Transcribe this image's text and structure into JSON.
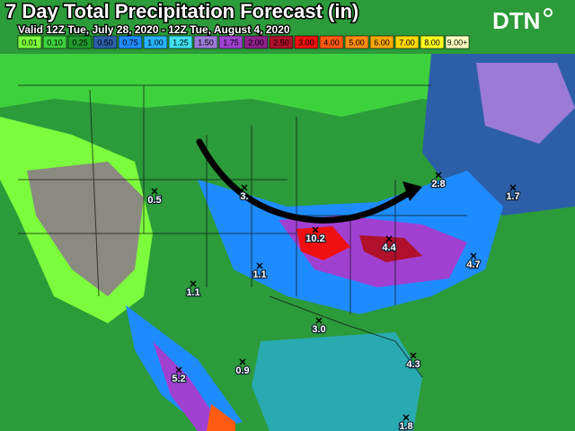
{
  "header": {
    "title": "7 Day Total Precipitation Forecast (in)",
    "subtitle": "Valid 12Z Tue, July 28, 2020 - 12Z Tue, August 4, 2020",
    "logo": "DTN"
  },
  "legend": [
    {
      "label": "0.01",
      "color": "#7cfc3c"
    },
    {
      "label": "0.10",
      "color": "#3ed13e"
    },
    {
      "label": "0.25",
      "color": "#1f9a2c"
    },
    {
      "label": "0.50",
      "color": "#2c5fa8"
    },
    {
      "label": "0.75",
      "color": "#1e8cff"
    },
    {
      "label": "1.00",
      "color": "#28b4ff"
    },
    {
      "label": "1.25",
      "color": "#3fe0f0"
    },
    {
      "label": "1.50",
      "color": "#9c7ad8"
    },
    {
      "label": "1.75",
      "color": "#a040d0"
    },
    {
      "label": "2.00",
      "color": "#90208c"
    },
    {
      "label": "2.50",
      "color": "#b0102a"
    },
    {
      "label": "3.00",
      "color": "#ee1010"
    },
    {
      "label": "4.00",
      "color": "#ff5a10"
    },
    {
      "label": "5.00",
      "color": "#ff8c10"
    },
    {
      "label": "6.00",
      "color": "#ffa800"
    },
    {
      "label": "7.00",
      "color": "#ffd800"
    },
    {
      "label": "8.00",
      "color": "#ffff20"
    },
    {
      "label": "9.00+",
      "color": "#ffffc0"
    }
  ],
  "map_labels": [
    "0.5",
    "3.",
    "10.2",
    "4.4",
    "2.8",
    "1.7",
    "4.7",
    "1.1",
    "1.1",
    "3.0",
    "0.9",
    "5.2",
    "4.3",
    "1.8"
  ]
}
